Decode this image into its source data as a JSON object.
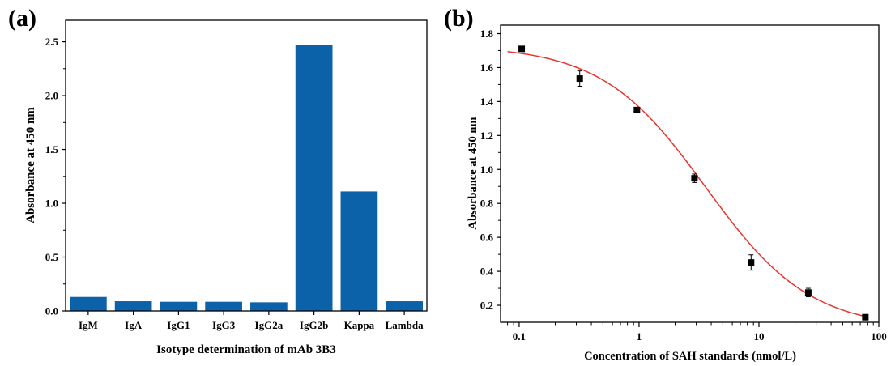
{
  "chart_data": [
    {
      "panel": "(a)",
      "type": "bar",
      "title": "",
      "xlabel": "Isotype determination of mAb 3B3",
      "ylabel": "Absorbance at 450 nm",
      "ylim": [
        0,
        2.7
      ],
      "yticks": [
        "0.0",
        "0.5",
        "1.0",
        "1.5",
        "2.0",
        "2.5"
      ],
      "categories": [
        "IgM",
        "IgA",
        "IgG1",
        "IgG3",
        "IgG2a",
        "IgG2b",
        "Kappa",
        "Lambda"
      ],
      "values": [
        0.13,
        0.09,
        0.085,
        0.085,
        0.08,
        2.47,
        1.11,
        0.09
      ],
      "bar_color": "#0c62a8",
      "grid": false,
      "legend": "none"
    },
    {
      "panel": "(b)",
      "type": "scatter",
      "title": "",
      "xlabel": "Concentration of SAH standards (nmol/L)",
      "ylabel": "Absorbance at 450 nm",
      "xscale": "log",
      "xlim": [
        0.07,
        100
      ],
      "ylim": [
        0.1,
        1.85
      ],
      "xticks": [
        "0.1",
        "1",
        "10",
        "100"
      ],
      "yticks": [
        "0.2",
        "0.4",
        "0.6",
        "0.8",
        "1.0",
        "1.2",
        "1.4",
        "1.6",
        "1.8"
      ],
      "points": {
        "x": [
          0.105,
          0.32,
          0.96,
          2.9,
          8.6,
          25.8,
          77.2
        ],
        "y": [
          1.71,
          1.535,
          1.35,
          0.948,
          0.452,
          0.275,
          0.13
        ],
        "yerr": [
          0.015,
          0.045,
          0.012,
          0.025,
          0.045,
          0.025,
          0.01
        ]
      },
      "fit": {
        "model": "four-parameter logistic",
        "top": 1.73,
        "bottom": 0.06,
        "ic50": 3.6,
        "hill": 1.0
      },
      "marker_color": "#000000",
      "fit_color": "#e8332c",
      "grid": false,
      "legend": "none"
    }
  ]
}
